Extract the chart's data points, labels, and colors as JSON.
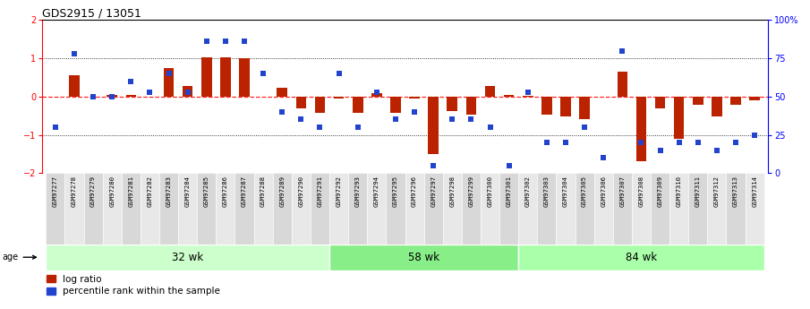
{
  "title": "GDS2915 / 13051",
  "samples": [
    "GSM97277",
    "GSM97278",
    "GSM97279",
    "GSM97280",
    "GSM97281",
    "GSM97282",
    "GSM97283",
    "GSM97284",
    "GSM97285",
    "GSM97286",
    "GSM97287",
    "GSM97288",
    "GSM97289",
    "GSM97290",
    "GSM97291",
    "GSM97292",
    "GSM97293",
    "GSM97294",
    "GSM97295",
    "GSM97296",
    "GSM97297",
    "GSM97298",
    "GSM97299",
    "GSM97300",
    "GSM97301",
    "GSM97302",
    "GSM97303",
    "GSM97304",
    "GSM97305",
    "GSM97306",
    "GSM97307",
    "GSM97308",
    "GSM97309",
    "GSM97310",
    "GSM97311",
    "GSM97312",
    "GSM97313",
    "GSM97314"
  ],
  "log_ratio": [
    0.0,
    0.55,
    0.0,
    0.05,
    0.05,
    0.0,
    0.75,
    0.28,
    1.03,
    1.03,
    1.0,
    0.0,
    0.22,
    -0.3,
    -0.42,
    -0.06,
    -0.42,
    0.08,
    -0.42,
    -0.06,
    -1.5,
    -0.38,
    -0.48,
    0.28,
    0.04,
    0.02,
    -0.48,
    -0.52,
    -0.58,
    0.0,
    0.65,
    -1.7,
    -0.32,
    -1.1,
    -0.22,
    -0.52,
    -0.22,
    -0.1
  ],
  "percentile": [
    30,
    78,
    50,
    50,
    60,
    53,
    65,
    53,
    86,
    86,
    86,
    65,
    40,
    35,
    30,
    65,
    30,
    53,
    35,
    40,
    5,
    35,
    35,
    30,
    5,
    53,
    20,
    20,
    30,
    10,
    80,
    20,
    15,
    20,
    20,
    15,
    20,
    25
  ],
  "groups": [
    {
      "label": "32 wk",
      "start": 0,
      "end": 15
    },
    {
      "label": "58 wk",
      "start": 15,
      "end": 25
    },
    {
      "label": "84 wk",
      "start": 25,
      "end": 38
    }
  ],
  "bar_color": "#bb2200",
  "dot_color": "#2244cc",
  "bg_color": "#ffffff",
  "tick_area_color": "#cccccc",
  "group_colors": [
    "#ccffcc",
    "#88ee88",
    "#aaffaa"
  ]
}
